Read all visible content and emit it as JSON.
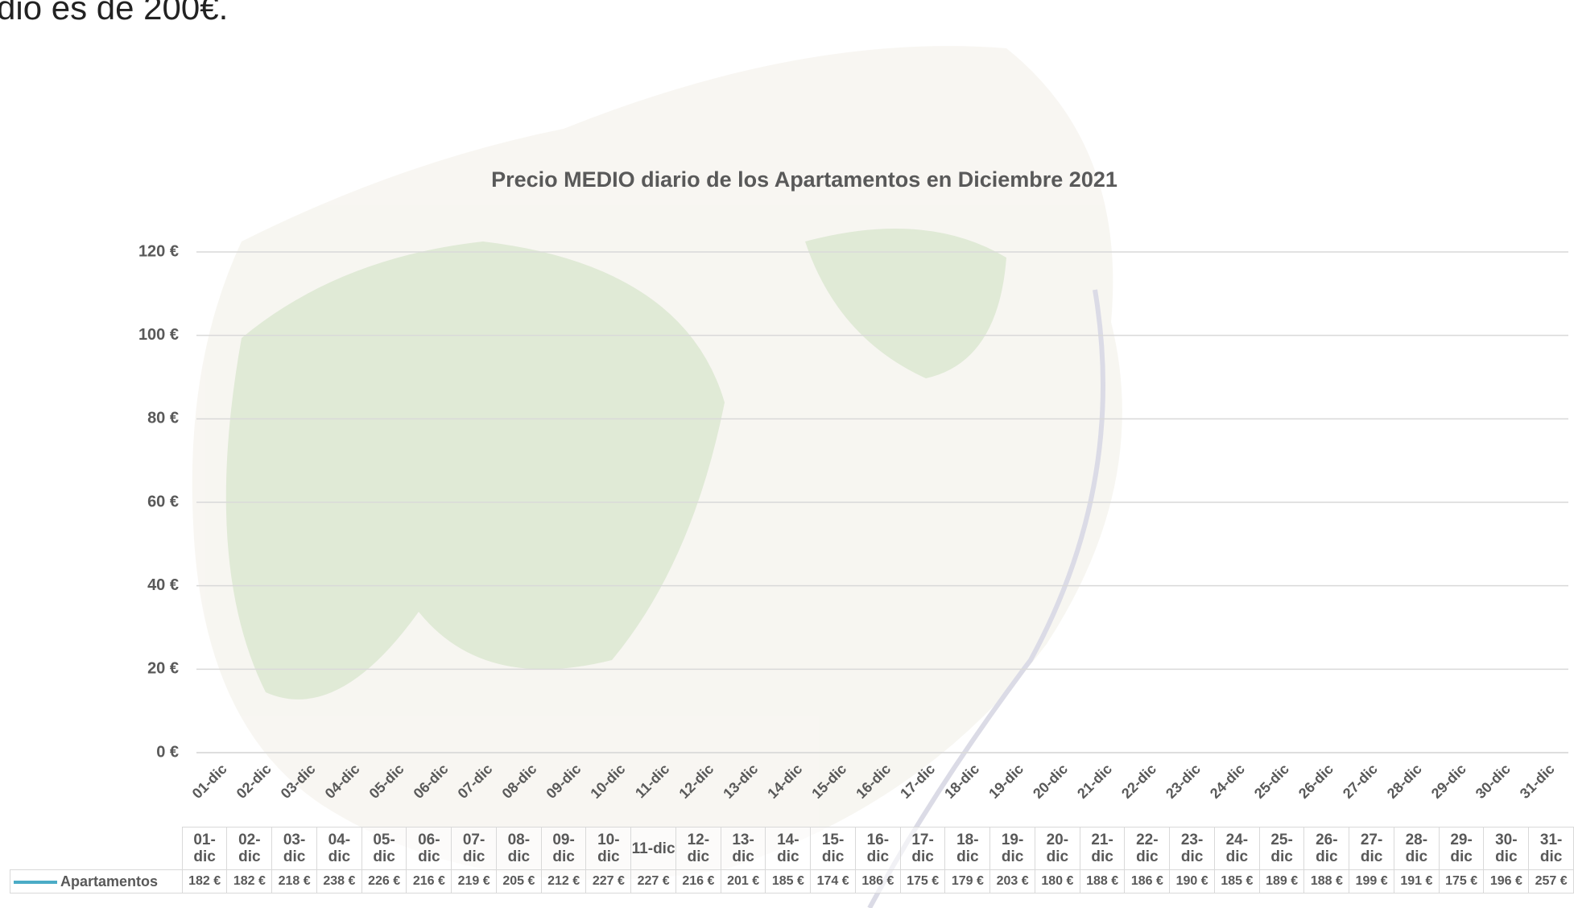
{
  "fragment_text": "dio es de 200€.",
  "chart_data": {
    "type": "line",
    "title": "Precio MEDIO diario de los Apartamentos en Diciembre 2021",
    "categories": [
      "01-dic",
      "02-dic",
      "03-dic",
      "04-dic",
      "05-dic",
      "06-dic",
      "07-dic",
      "08-dic",
      "09-dic",
      "10-dic",
      "11-dic",
      "12-dic",
      "13-dic",
      "14-dic",
      "15-dic",
      "16-dic",
      "17-dic",
      "18-dic",
      "19-dic",
      "20-dic",
      "21-dic",
      "22-dic",
      "23-dic",
      "24-dic",
      "25-dic",
      "26-dic",
      "27-dic",
      "28-dic",
      "29-dic",
      "30-dic",
      "31-dic"
    ],
    "series": [
      {
        "name": "Apartamentos",
        "color": "#4bacc6",
        "values": [
          182,
          182,
          218,
          238,
          226,
          216,
          219,
          205,
          212,
          227,
          227,
          216,
          201,
          185,
          174,
          186,
          175,
          179,
          203,
          180,
          188,
          186,
          190,
          185,
          189,
          188,
          199,
          191,
          175,
          196,
          257
        ],
        "value_labels": [
          "182 €",
          "182 €",
          "218 €",
          "238 €",
          "226 €",
          "216 €",
          "219 €",
          "205 €",
          "212 €",
          "227 €",
          "227 €",
          "216 €",
          "201 €",
          "185 €",
          "174 €",
          "186 €",
          "175 €",
          "179 €",
          "203 €",
          "180 €",
          "188 €",
          "186 €",
          "190 €",
          "185 €",
          "189 €",
          "188 €",
          "199 €",
          "191 €",
          "175 €",
          "196 €",
          "257 €"
        ]
      }
    ],
    "ylim": [
      0,
      120
    ],
    "yticks": [
      {
        "value": 0,
        "label": "0 €"
      },
      {
        "value": 20,
        "label": "20 €"
      },
      {
        "value": 40,
        "label": "40 €"
      },
      {
        "value": 60,
        "label": "60 €"
      },
      {
        "value": 80,
        "label": "80 €"
      },
      {
        "value": 100,
        "label": "100 €"
      },
      {
        "value": 120,
        "label": "120 €"
      }
    ],
    "grid": true
  }
}
